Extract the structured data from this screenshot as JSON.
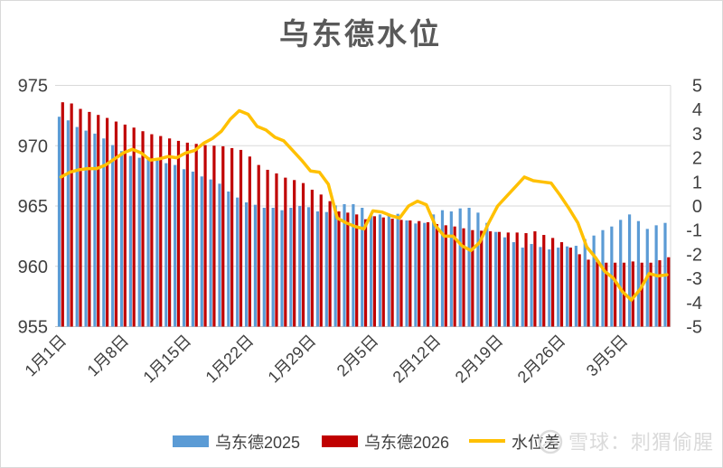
{
  "title": "乌东德水位",
  "watermark": {
    "text": "雪球：刺猬偷腥",
    "icon": "snowball-logo"
  },
  "colors": {
    "bar_2025": "#5B9BD5",
    "bar_2026": "#C00000",
    "diff_line": "#FFC000",
    "gridline": "#d9d9d9",
    "axis_text": "#404040",
    "title_text": "#595959",
    "watermark_text": "#d6d6d6",
    "background": "#ffffff"
  },
  "legend": [
    {
      "label": "乌东德2025",
      "color": "#5B9BD5",
      "type": "bar"
    },
    {
      "label": "乌东德2026",
      "color": "#C00000",
      "type": "bar"
    },
    {
      "label": "水位差",
      "color": "#FFC000",
      "type": "line"
    }
  ],
  "chart_data": {
    "type": "bar",
    "subtype": "clustered-bars-with-line",
    "title": "乌东德水位",
    "xlabel": "",
    "ylabel_left": "",
    "ylabel_right": "",
    "grid": "horizontal",
    "legend_position": "bottom",
    "x_tick_labels": [
      "1月1日",
      "1月8日",
      "1月15日",
      "1月22日",
      "1月29日",
      "2月5日",
      "2月12日",
      "2月19日",
      "2月26日",
      "3月5日"
    ],
    "x_tick_day_index": [
      0,
      7,
      14,
      21,
      28,
      35,
      42,
      49,
      56,
      63
    ],
    "left_axis": {
      "min": 955,
      "max": 975,
      "ticks": [
        975,
        970,
        965,
        960,
        955
      ]
    },
    "right_axis": {
      "min": -5,
      "max": 5,
      "ticks": [
        5,
        4,
        3,
        2,
        1,
        0,
        -1,
        -2,
        -3,
        -4,
        -5
      ]
    },
    "series": [
      {
        "name": "乌东德2025",
        "type": "bar",
        "axis": "left",
        "color": "#5B9BD5",
        "values": [
          972.4,
          972.1,
          971.55,
          971.25,
          971.0,
          970.6,
          970.05,
          969.55,
          969.15,
          969.0,
          969.05,
          968.85,
          968.55,
          968.4,
          968.05,
          967.85,
          967.45,
          967.2,
          966.85,
          966.2,
          965.7,
          965.3,
          965.1,
          964.85,
          964.85,
          964.65,
          964.85,
          965.0,
          964.9,
          964.55,
          964.5,
          965.05,
          965.15,
          965.15,
          964.85,
          964.35,
          964.3,
          964.35,
          964.35,
          963.8,
          963.55,
          963.6,
          964.3,
          964.65,
          964.55,
          964.8,
          964.85,
          964.45,
          963.6,
          962.85,
          962.4,
          962.0,
          961.55,
          961.85,
          961.6,
          961.4,
          961.55,
          961.65,
          961.7,
          962.25,
          962.55,
          963.0,
          963.3,
          963.85,
          964.3,
          963.75,
          963.1,
          963.4,
          963.6
        ]
      },
      {
        "name": "乌东德2026",
        "type": "bar",
        "axis": "left",
        "color": "#C00000",
        "values": [
          973.6,
          973.5,
          973.05,
          972.8,
          972.55,
          972.3,
          972.0,
          971.75,
          971.5,
          971.2,
          970.95,
          970.8,
          970.6,
          970.4,
          970.25,
          970.15,
          970.05,
          970.0,
          969.95,
          969.8,
          969.65,
          969.1,
          968.4,
          968.0,
          967.7,
          967.35,
          967.15,
          966.9,
          966.35,
          965.95,
          965.4,
          964.55,
          964.45,
          964.3,
          963.9,
          964.15,
          964.05,
          963.95,
          963.85,
          963.8,
          963.75,
          963.65,
          963.5,
          963.4,
          963.3,
          963.15,
          963.0,
          962.95,
          962.9,
          962.85,
          962.8,
          962.8,
          962.75,
          962.9,
          962.6,
          962.35,
          962.0,
          961.55,
          961.0,
          960.55,
          960.4,
          960.3,
          960.3,
          960.3,
          960.4,
          960.3,
          960.3,
          960.5,
          960.75
        ]
      },
      {
        "name": "水位差",
        "type": "line",
        "axis": "right",
        "color": "#FFC000",
        "values": [
          1.2,
          1.4,
          1.5,
          1.55,
          1.55,
          1.7,
          1.95,
          2.2,
          2.35,
          2.2,
          1.9,
          1.95,
          2.05,
          2.0,
          2.2,
          2.3,
          2.6,
          2.8,
          3.1,
          3.6,
          3.95,
          3.8,
          3.3,
          3.15,
          2.85,
          2.7,
          2.3,
          1.9,
          1.45,
          1.4,
          0.9,
          -0.5,
          -0.7,
          -0.85,
          -0.95,
          -0.2,
          -0.25,
          -0.4,
          -0.5,
          0.0,
          0.2,
          0.05,
          -0.8,
          -1.25,
          -1.25,
          -1.65,
          -1.85,
          -1.5,
          -0.7,
          0.0,
          0.4,
          0.8,
          1.2,
          1.05,
          1.0,
          0.95,
          0.45,
          -0.1,
          -0.7,
          -1.7,
          -2.15,
          -2.7,
          -3.0,
          -3.55,
          -3.9,
          -3.45,
          -2.8,
          -2.9,
          -2.85
        ]
      }
    ]
  }
}
